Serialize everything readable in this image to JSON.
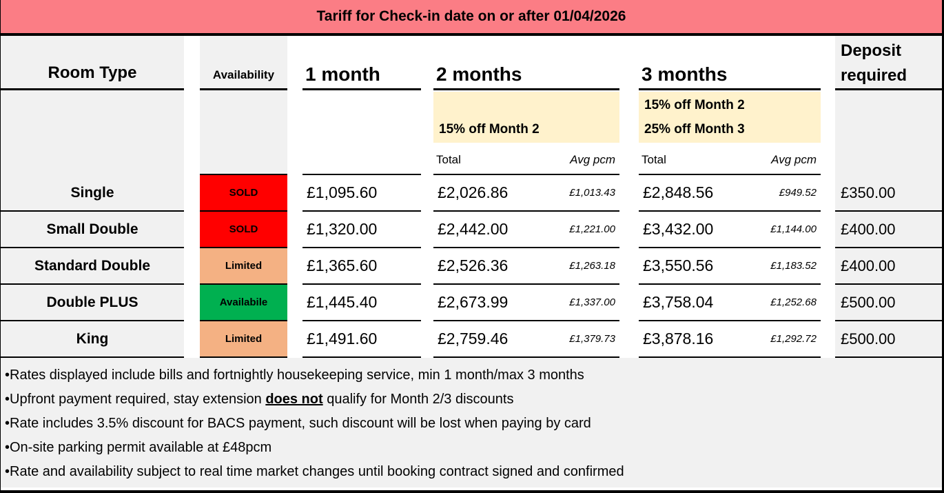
{
  "title": "Tariff for Check-in date on or after 01/04/2026",
  "colors": {
    "title_bg": "#FB7D85",
    "column_gray": "#F1F1F1",
    "note_yellow": "#FFF2CC",
    "sold_red": "#FF0000",
    "limited_orange": "#F4B183",
    "available_green": "#00B050"
  },
  "header": {
    "room_type": "Room Type",
    "availability": "Availability",
    "month1": "1 month",
    "month2": "2 months",
    "month3": "3 months",
    "deposit_line1": "Deposit",
    "deposit_line2": "required"
  },
  "discount_notes": {
    "month2": "15% off Month 2",
    "month3_line1": "15% off Month 2",
    "month3_line2": "25% off Month 3"
  },
  "subheaders": {
    "total": "Total",
    "avg_pcm": "Avg pcm"
  },
  "rows": [
    {
      "room": "Single",
      "availability": "SOLD",
      "status_color": "#FF0000",
      "m1": "£1,095.60",
      "m2_total": "£2,026.86",
      "m2_avg": "£1,013.43",
      "m3_total": "£2,848.56",
      "m3_avg": "£949.52",
      "deposit": "£350.00"
    },
    {
      "room": "Small Double",
      "availability": "SOLD",
      "status_color": "#FF0000",
      "m1": "£1,320.00",
      "m2_total": "£2,442.00",
      "m2_avg": "£1,221.00",
      "m3_total": "£3,432.00",
      "m3_avg": "£1,144.00",
      "deposit": "£400.00"
    },
    {
      "room": "Standard Double",
      "availability": "Limited",
      "status_color": "#F4B183",
      "m1": "£1,365.60",
      "m2_total": "£2,526.36",
      "m2_avg": "£1,263.18",
      "m3_total": "£3,550.56",
      "m3_avg": "£1,183.52",
      "deposit": "£400.00"
    },
    {
      "room": "Double PLUS",
      "availability": "Availabile",
      "status_color": "#00B050",
      "m1": "£1,445.40",
      "m2_total": "£2,673.99",
      "m2_avg": "£1,337.00",
      "m3_total": "£3,758.04",
      "m3_avg": "£1,252.68",
      "deposit": "£500.00"
    },
    {
      "room": "King",
      "availability": "Limited",
      "status_color": "#F4B183",
      "m1": "£1,491.60",
      "m2_total": "£2,759.46",
      "m2_avg": "£1,379.73",
      "m3_total": "£3,878.16",
      "m3_avg": "£1,292.72",
      "deposit": "£500.00"
    }
  ],
  "footnotes": {
    "line1": "•Rates displayed include bills and fortnightly housekeeping service, min 1 month/max 3 months",
    "line2_pre": "•Upfront payment required, stay extension ",
    "line2_bold": "does not",
    "line2_post": " qualify for Month 2/3 discounts",
    "line3": "•Rate includes 3.5% discount for BACS payment, such discount will be lost when paying by card",
    "line4": "•On-site parking permit available at £48pcm",
    "line5": "•Rate and availability subject to real time market changes until booking contract signed and confirmed"
  }
}
